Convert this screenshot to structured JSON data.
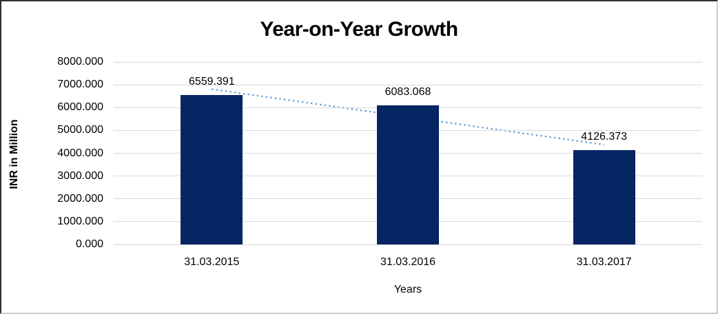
{
  "frame": {
    "border_dark_color": "#2f2f2f",
    "border_light_color": "#cccccc",
    "background_color": "#ffffff"
  },
  "chart_data": {
    "type": "bar",
    "title": "Year-on-Year Growth",
    "categories": [
      "31.03.2015",
      "31.03.2016",
      "31.03.2017"
    ],
    "values": [
      6559.391,
      6083.068,
      4126.373
    ],
    "data_labels": [
      "6559.391",
      "6083.068",
      "4126.373"
    ],
    "xlabel": "Years",
    "ylabel": "INR in Million",
    "ylim": [
      0,
      8000
    ],
    "y_tick_step": 1000,
    "y_tick_labels": [
      "0.000",
      "1000.000",
      "2000.000",
      "3000.000",
      "4000.000",
      "5000.000",
      "6000.000",
      "7000.000",
      "8000.000"
    ],
    "grid": "horizontal",
    "legend": "none",
    "bar_color": "#062563",
    "gridline_color": "#D9D9D9",
    "label_color": "#000000",
    "trendline": {
      "type": "linear",
      "style": "dotted",
      "color": "#5B9BD5"
    }
  }
}
